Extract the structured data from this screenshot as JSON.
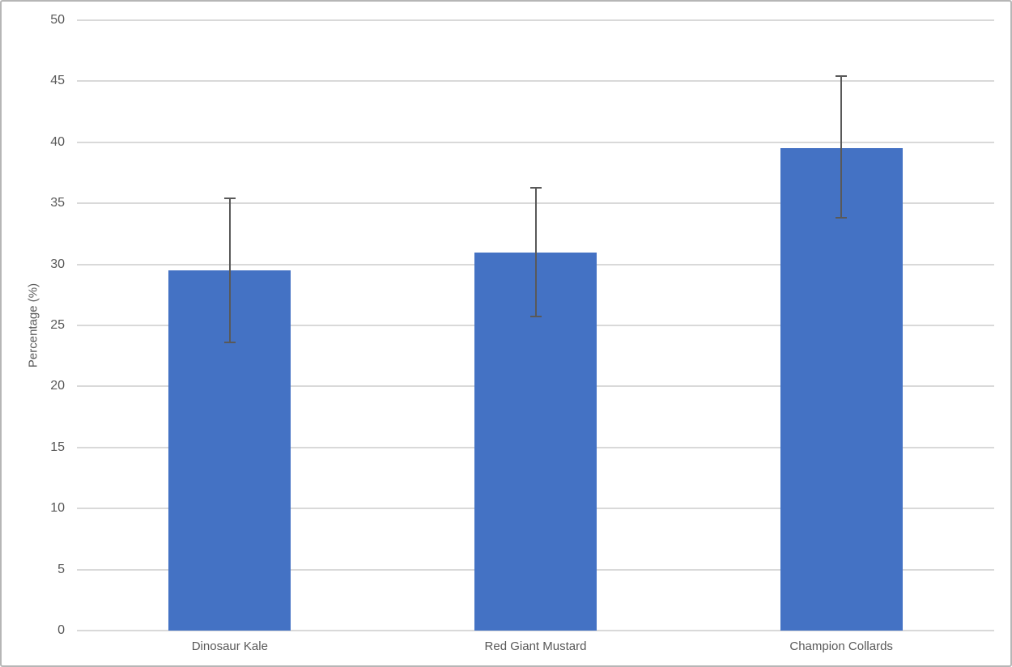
{
  "chart_data": {
    "type": "bar",
    "title": "",
    "xlabel": "",
    "ylabel": "Percentage (%)",
    "categories": [
      "Dinosaur Kale",
      "Red Giant Mustard",
      "Champion Collards"
    ],
    "values": [
      29.5,
      31.0,
      39.5
    ],
    "error_bars": {
      "upper": [
        35.4,
        36.3,
        45.4
      ],
      "lower": [
        23.6,
        25.7,
        33.8
      ]
    },
    "ylim": [
      0,
      50
    ],
    "yticks": [
      0,
      5,
      10,
      15,
      20,
      25,
      30,
      35,
      40,
      45,
      50
    ],
    "grid": true,
    "legend": "none",
    "colors": {
      "bar_fill": "#4472C4",
      "error_bar": "#595959",
      "gridline": "#d9d9d9",
      "axis_text": "#595959",
      "background": "#ffffff",
      "frame_border": "#b6b6b6"
    }
  }
}
